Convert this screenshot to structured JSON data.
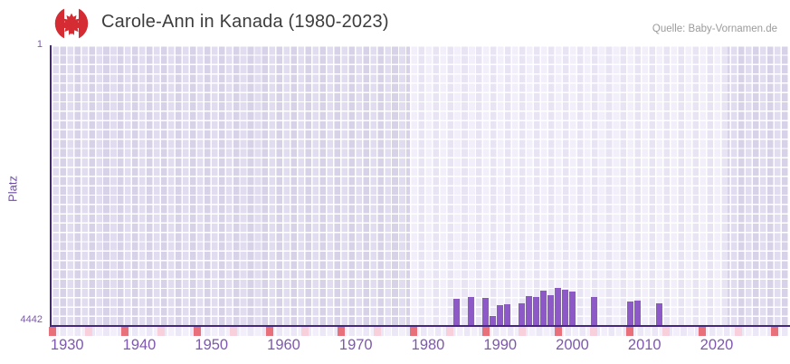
{
  "header": {
    "title": "Carole-Ann in Kanada (1980-2023)",
    "source": "Quelle: Baby-Vornamen.de"
  },
  "chart_data": {
    "type": "bar",
    "title": "Carole-Ann in Kanada (1980-2023)",
    "xlabel": "",
    "ylabel": "Platz",
    "grid": true,
    "legend_position": "none",
    "y_axis": {
      "top_label": "1",
      "bottom_label": "4442",
      "min": 1,
      "max": 4442,
      "reversed": true
    },
    "x_axis": {
      "ticks": [
        1930,
        1940,
        1950,
        1960,
        1970,
        1980,
        1990,
        2000,
        2010,
        2020
      ],
      "range": [
        1927,
        2030
      ]
    },
    "highlight_range": [
      1978,
      2022
    ],
    "points": [
      {
        "year": 1984,
        "rank": 4020
      },
      {
        "year": 1986,
        "rank": 4001
      },
      {
        "year": 1988,
        "rank": 4010
      },
      {
        "year": 1989,
        "rank": 4296
      },
      {
        "year": 1990,
        "rank": 4130
      },
      {
        "year": 1991,
        "rank": 4113
      },
      {
        "year": 1993,
        "rank": 4099
      },
      {
        "year": 1994,
        "rank": 3987
      },
      {
        "year": 1995,
        "rank": 4001
      },
      {
        "year": 1996,
        "rank": 3891
      },
      {
        "year": 1997,
        "rank": 3972
      },
      {
        "year": 1998,
        "rank": 3848
      },
      {
        "year": 1999,
        "rank": 3881
      },
      {
        "year": 2000,
        "rank": 3905
      },
      {
        "year": 2003,
        "rank": 3991
      },
      {
        "year": 2008,
        "rank": 4073
      },
      {
        "year": 2009,
        "rank": 4058
      },
      {
        "year": 2012,
        "rank": 4096
      }
    ],
    "bottom_marks": [
      {
        "year": 1928,
        "type": "dark"
      },
      {
        "year": 1933,
        "type": "light"
      },
      {
        "year": 1938,
        "type": "dark"
      },
      {
        "year": 1943,
        "type": "light"
      },
      {
        "year": 1948,
        "type": "dark"
      },
      {
        "year": 1953,
        "type": "light"
      },
      {
        "year": 1958,
        "type": "dark"
      },
      {
        "year": 1963,
        "type": "light"
      },
      {
        "year": 1968,
        "type": "dark"
      },
      {
        "year": 1973,
        "type": "light"
      },
      {
        "year": 1978,
        "type": "dark"
      },
      {
        "year": 1983,
        "type": "light"
      },
      {
        "year": 1988,
        "type": "dark"
      },
      {
        "year": 1993,
        "type": "light"
      },
      {
        "year": 1998,
        "type": "dark"
      },
      {
        "year": 2003,
        "type": "light"
      },
      {
        "year": 2008,
        "type": "dark"
      },
      {
        "year": 2013,
        "type": "light"
      },
      {
        "year": 2018,
        "type": "dark"
      },
      {
        "year": 2023,
        "type": "light"
      },
      {
        "year": 2028,
        "type": "dark"
      }
    ],
    "colors": {
      "bar": "#8C59C6",
      "axis_line": "#44287E",
      "tick_label": "#7E58AE",
      "mark_dark": "#E7707B",
      "mark_light": "#F7D0DC",
      "grid_light_a": "#F2EFFA",
      "grid_light_b": "#E9E4F4",
      "grid_dark_a": "#E1DCEF",
      "grid_dark_b": "#D8D2E8",
      "flag_red": "#D52B32",
      "title_text": "#3D3D3D",
      "source_text": "#9B9B9B"
    }
  }
}
